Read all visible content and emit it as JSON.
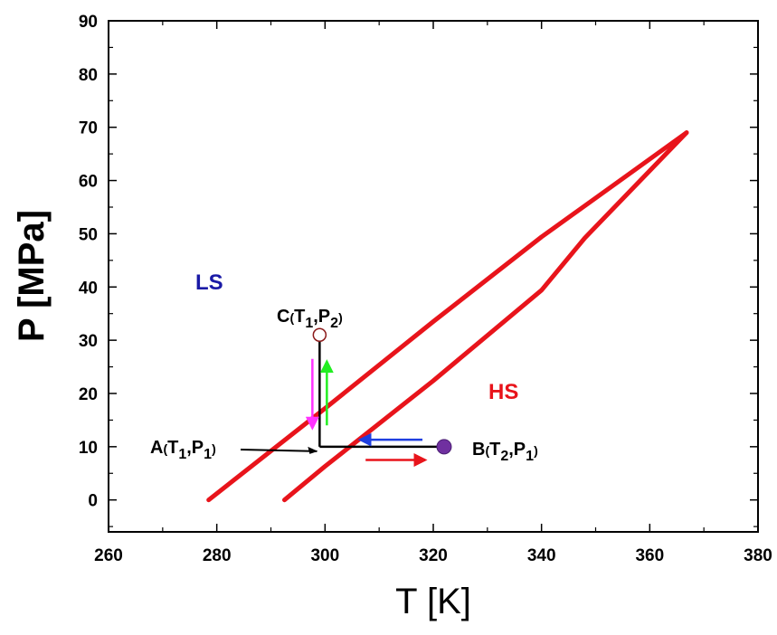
{
  "chart_data": {
    "type": "line",
    "xlabel": "T [K]",
    "ylabel": "P [MPa]",
    "xlim": [
      260,
      380
    ],
    "ylim": [
      -6,
      90
    ],
    "xticks": [
      260,
      280,
      300,
      320,
      340,
      360,
      380
    ],
    "yticks": [
      0,
      10,
      20,
      30,
      40,
      50,
      60,
      70,
      80,
      90
    ],
    "grid": false,
    "series": [
      {
        "color": "#e8141b",
        "points": [
          [
            278.5,
            0
          ],
          [
            300,
            17.2
          ],
          [
            320,
            33.5
          ],
          [
            340,
            49.4
          ],
          [
            356,
            61.1
          ],
          [
            366.8,
            69
          ]
        ]
      },
      {
        "color": "#e8141b",
        "points": [
          [
            292.5,
            0
          ],
          [
            300,
            6.3
          ],
          [
            320,
            22.4
          ],
          [
            340,
            39.4
          ],
          [
            348,
            49.2
          ],
          [
            366.8,
            69
          ]
        ]
      }
    ],
    "points": [
      {
        "id": "A",
        "T": 299,
        "P": 10,
        "label": {
          "name": "A",
          "t_sub": "1",
          "p_sub": "1"
        }
      },
      {
        "id": "B",
        "T": 322,
        "P": 10,
        "label": {
          "name": "B",
          "t_sub": "2",
          "p_sub": "1"
        },
        "color": "#7030a0"
      },
      {
        "id": "C",
        "T": 299,
        "P": 31,
        "label": {
          "name": "C",
          "t_sub": "1",
          "p_sub": "2"
        }
      }
    ],
    "annotations": [
      {
        "text": "LS",
        "color": "#1a1aa6"
      },
      {
        "text": "HS",
        "color": "#e8141b"
      }
    ],
    "arrow_colors": {
      "down": "#ff33ff",
      "up": "#22ee22",
      "left": "#1f3fe0",
      "right": "#e8141b"
    }
  }
}
